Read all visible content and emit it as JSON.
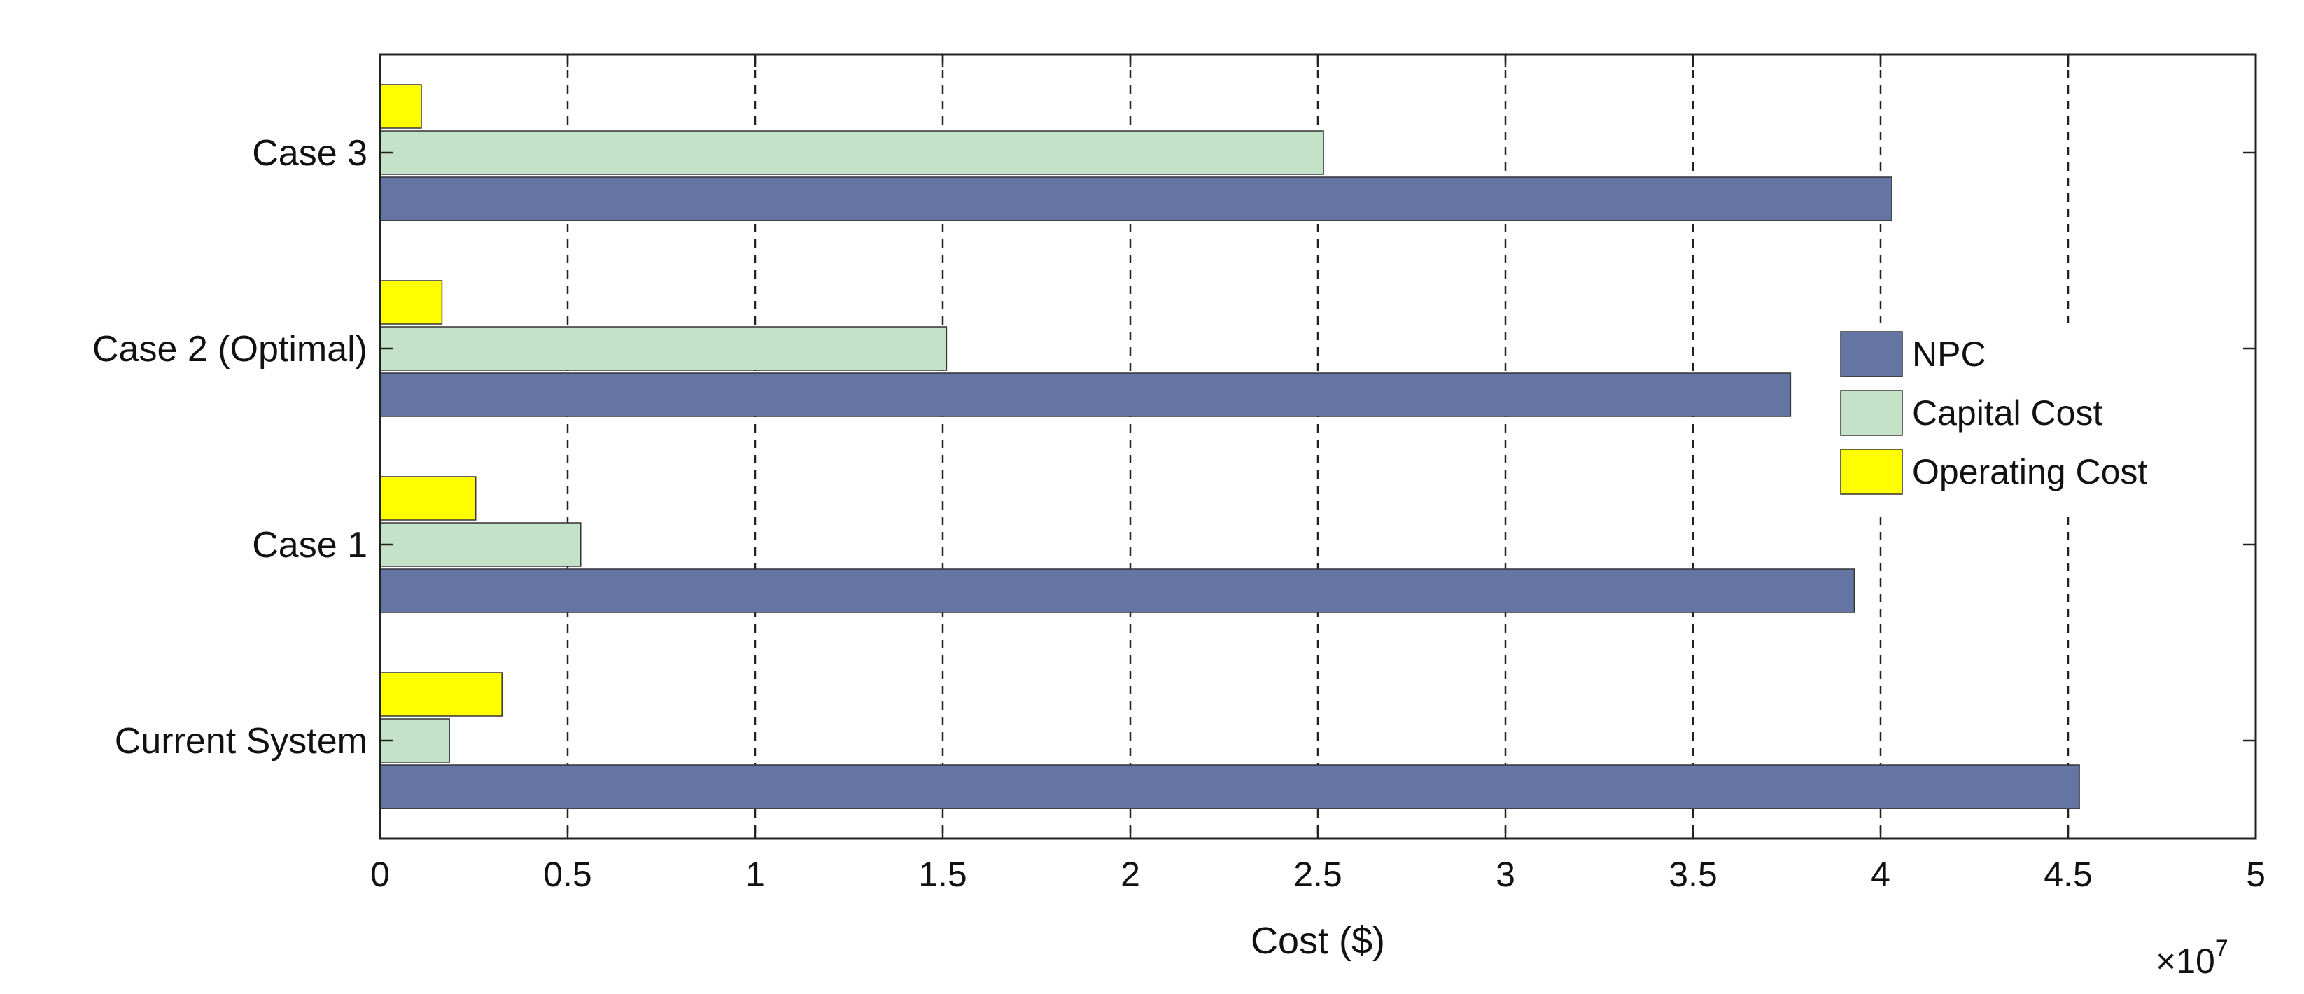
{
  "chart_data": {
    "type": "bar",
    "orientation": "horizontal",
    "categories": [
      "Current System",
      "Case 1",
      "Case 2 (Optimal)",
      "Case 3"
    ],
    "series": [
      {
        "name": "NPC",
        "color": "#6475a4",
        "values": [
          45300000,
          39300000,
          37600000,
          40300000
        ]
      },
      {
        "name": "Capital Cost",
        "color": "#c4e2c8",
        "values": [
          1850000,
          5350000,
          15100000,
          25150000
        ]
      },
      {
        "name": "Operating Cost",
        "color": "#ffff00",
        "values": [
          3250000,
          2550000,
          1650000,
          1100000
        ]
      }
    ],
    "xlabel": "Cost ($)",
    "xlim": [
      0,
      50000000
    ],
    "xticks": [
      0,
      5000000,
      10000000,
      15000000,
      20000000,
      25000000,
      30000000,
      35000000,
      40000000,
      45000000,
      50000000
    ],
    "xtick_labels": [
      "0",
      "0.5",
      "1",
      "1.5",
      "2",
      "2.5",
      "3",
      "3.5",
      "4",
      "4.5",
      "5"
    ],
    "x_exponent": {
      "base": "×10",
      "power": "7"
    },
    "grid": "vertical-dashed",
    "legend_position": "right"
  }
}
